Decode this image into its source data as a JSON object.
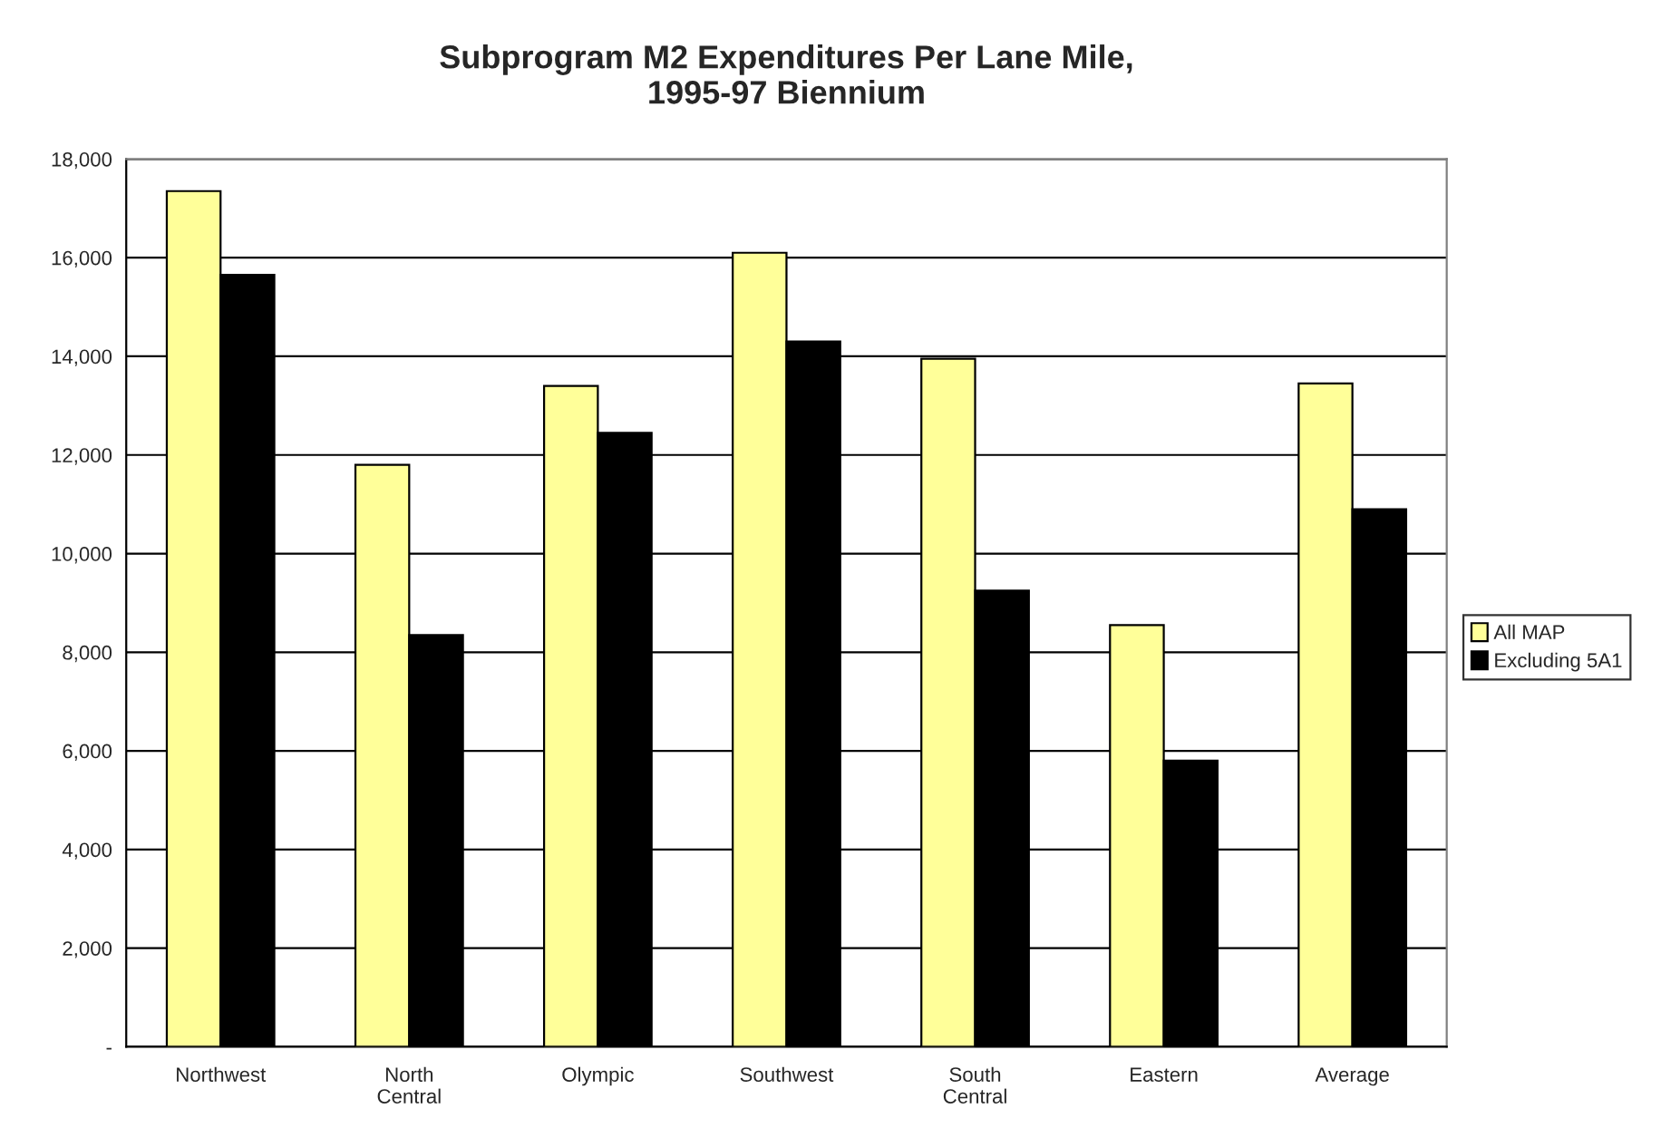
{
  "chart_data": {
    "type": "bar",
    "title": "Subprogram M2 Expenditures Per Lane Mile,\n1995-97 Biennium",
    "categories": [
      "Northwest",
      "North\nCentral",
      "Olympic",
      "Southwest",
      "South\nCentral",
      "Eastern",
      "Average"
    ],
    "series": [
      {
        "name": "All MAP",
        "color": "#ffff99",
        "values": [
          17350,
          11800,
          13400,
          16100,
          13950,
          8550,
          13450
        ]
      },
      {
        "name": "Excluding 5A1",
        "color": "#000000",
        "values": [
          15650,
          8350,
          12450,
          14300,
          9250,
          5800,
          10900
        ]
      }
    ],
    "ylim": [
      0,
      18000
    ],
    "yticks": [
      {
        "value": 0,
        "label": "-"
      },
      {
        "value": 2000,
        "label": "2,000"
      },
      {
        "value": 4000,
        "label": "4,000"
      },
      {
        "value": 6000,
        "label": "6,000"
      },
      {
        "value": 8000,
        "label": "8,000"
      },
      {
        "value": 10000,
        "label": "10,000"
      },
      {
        "value": 12000,
        "label": "12,000"
      },
      {
        "value": 14000,
        "label": "14,000"
      },
      {
        "value": 16000,
        "label": "16,000"
      },
      {
        "value": 18000,
        "label": "18,000"
      }
    ],
    "grid": "y",
    "legend": "right"
  }
}
